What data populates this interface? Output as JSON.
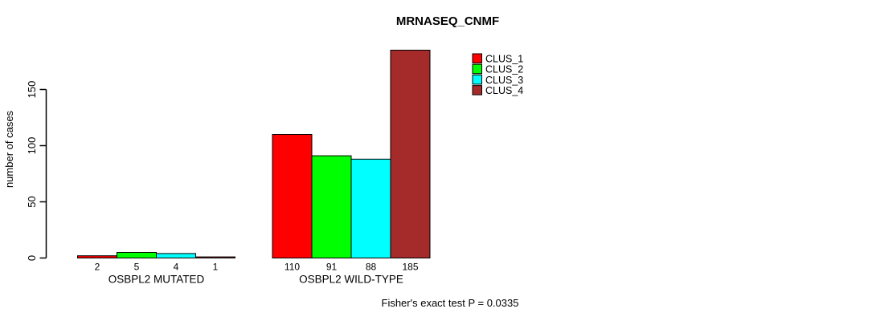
{
  "chart_data": {
    "type": "bar",
    "title": "MRNASEQ_CNMF",
    "ylabel": "number of cases",
    "xlabel": "",
    "yticks": [
      0,
      50,
      100,
      150
    ],
    "ylim": [
      0,
      185
    ],
    "grid": false,
    "legend_position": "top-right",
    "categories": [
      "OSBPL2 MUTATED",
      "OSBPL2 WILD-TYPE"
    ],
    "series": [
      {
        "name": "CLUS_1",
        "color": "#ff0000",
        "values": [
          2,
          110
        ]
      },
      {
        "name": "CLUS_2",
        "color": "#00ff00",
        "values": [
          5,
          91
        ]
      },
      {
        "name": "CLUS_3",
        "color": "#00ffff",
        "values": [
          4,
          88
        ]
      },
      {
        "name": "CLUS_4",
        "color": "#a52a2a",
        "values": [
          1,
          185
        ]
      }
    ],
    "bar_value_labels_mutated": [
      "2",
      "5",
      "4",
      "1"
    ],
    "bar_value_labels_wildtype": [
      "110",
      "91",
      "88",
      "185"
    ],
    "annotation": "Fisher's exact test P = 0.0335",
    "axis_color": "#000000",
    "bar_border_color": "#000000"
  }
}
